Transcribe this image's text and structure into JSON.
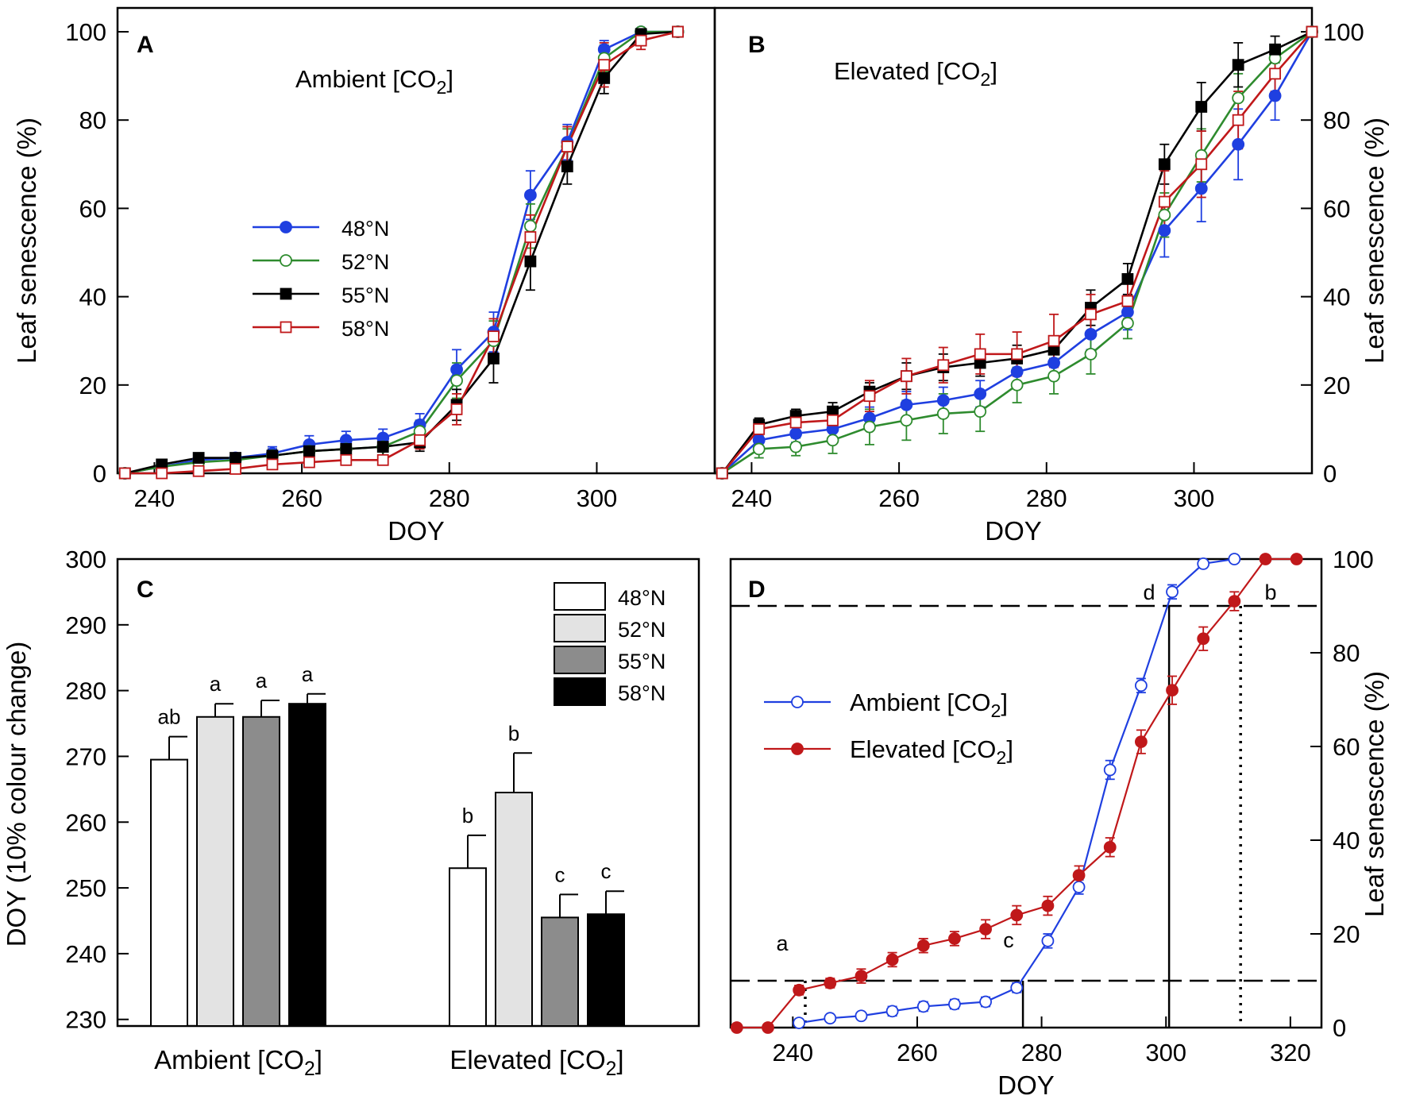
{
  "chart_data": [
    {
      "panel": "A",
      "type": "line",
      "title": "Ambient [CO",
      "title_sub": "2",
      "title_end": "]",
      "xlabel": "DOY",
      "ylabel": "Leaf senescence (%)",
      "xlim": [
        235,
        316
      ],
      "ylim": [
        0,
        100
      ],
      "xticks": [
        240,
        260,
        280,
        300
      ],
      "yticks": [
        0,
        20,
        40,
        60,
        80,
        100
      ],
      "x": [
        236,
        241,
        246,
        251,
        256,
        261,
        266,
        271,
        276,
        281,
        286,
        291,
        296,
        301,
        306,
        311
      ],
      "series": [
        {
          "name": "48°N",
          "color": "#1f3fe0",
          "marker": "filled-circle",
          "values": [
            0,
            1.5,
            3,
            3.5,
            4.5,
            6.5,
            7.5,
            8,
            11,
            23.5,
            32,
            63,
            75,
            96,
            100,
            100
          ],
          "errors": [
            0,
            0.5,
            1,
            1,
            1.5,
            2,
            2,
            2,
            2.5,
            4.5,
            4.5,
            5.5,
            4,
            2,
            0,
            0
          ]
        },
        {
          "name": "52°N",
          "color": "#2e8b2e",
          "marker": "open-circle",
          "values": [
            0,
            1.5,
            2.5,
            3,
            4,
            5,
            5.5,
            6,
            9.5,
            21,
            30,
            56,
            74,
            94,
            100,
            100
          ],
          "errors": [
            0,
            0.5,
            1,
            1,
            1.5,
            1.5,
            1.5,
            2,
            2.5,
            4,
            4.5,
            5,
            4,
            3,
            0,
            0
          ]
        },
        {
          "name": "55°N",
          "color": "#000000",
          "marker": "filled-square",
          "values": [
            0,
            2,
            3.5,
            3.5,
            4,
            5,
            5.5,
            6,
            7,
            15.5,
            26,
            48,
            69.5,
            89.5,
            99.5,
            100
          ],
          "errors": [
            0,
            0.5,
            1,
            1,
            1.5,
            1.5,
            1.5,
            2,
            2,
            3.5,
            5.5,
            6.5,
            4,
            3.5,
            1,
            0
          ]
        },
        {
          "name": "58°N",
          "color": "#c0181a",
          "marker": "open-square",
          "values": [
            0,
            0,
            0.5,
            1,
            2,
            2.5,
            3,
            3,
            7.5,
            14.5,
            31,
            53.5,
            74,
            92.5,
            98,
            100
          ],
          "errors": [
            0,
            0.5,
            0.5,
            0.5,
            1,
            1,
            1,
            1,
            2,
            3.5,
            4,
            5,
            4.5,
            5,
            2,
            0
          ]
        }
      ]
    },
    {
      "panel": "B",
      "type": "line",
      "title": "Elevated [CO",
      "title_sub": "2",
      "title_end": "]",
      "xlabel": "DOY",
      "ylabel": "Leaf senescence (%)",
      "xlim": [
        235,
        316
      ],
      "ylim": [
        0,
        100
      ],
      "xticks": [
        240,
        260,
        280,
        300
      ],
      "yticks": [
        0,
        20,
        40,
        60,
        80,
        100
      ],
      "x": [
        236,
        241,
        246,
        251,
        256,
        261,
        266,
        271,
        276,
        281,
        286,
        291,
        296,
        301,
        306,
        311,
        316
      ],
      "series": [
        {
          "name": "48°N",
          "color": "#1f3fe0",
          "marker": "filled-circle",
          "values": [
            0,
            7.5,
            9,
            10,
            12.5,
            15.5,
            16.5,
            18,
            23,
            25,
            31.5,
            36.5,
            55,
            64.5,
            74.5,
            85.5,
            100
          ],
          "errors": [
            0,
            2,
            2,
            2,
            2.5,
            3,
            3,
            3,
            3,
            3.5,
            3.5,
            4,
            6,
            7.5,
            8,
            5.5,
            0
          ]
        },
        {
          "name": "52°N",
          "color": "#2e8b2e",
          "marker": "open-circle",
          "values": [
            0,
            5.5,
            6,
            7.5,
            10.5,
            12,
            13.5,
            14,
            20,
            22,
            27,
            34,
            58.5,
            72,
            85,
            94,
            100
          ],
          "errors": [
            0,
            2,
            2,
            3,
            4,
            4.5,
            4.5,
            4.5,
            4,
            4,
            4.5,
            3.5,
            5,
            6,
            5.5,
            3,
            0
          ]
        },
        {
          "name": "55°N",
          "color": "#000000",
          "marker": "filled-square",
          "values": [
            0,
            11,
            13,
            14,
            18.5,
            22,
            24,
            25,
            26,
            28,
            37.5,
            44,
            70,
            83,
            92.5,
            96,
            100
          ],
          "errors": [
            0,
            1.5,
            1.5,
            2,
            2,
            3,
            3,
            3,
            3,
            3,
            4,
            3.5,
            4.5,
            5.5,
            5,
            3,
            0
          ]
        },
        {
          "name": "58°N",
          "color": "#c0181a",
          "marker": "open-square",
          "values": [
            0,
            10,
            11.5,
            12,
            17.5,
            22,
            24.5,
            27,
            27,
            30,
            36,
            39,
            61.5,
            70,
            80,
            90.5,
            100
          ],
          "errors": [
            0,
            1.5,
            2,
            2.5,
            3.5,
            4,
            4,
            4.5,
            5,
            6,
            4.5,
            4,
            7,
            7.5,
            6.5,
            4,
            0
          ]
        }
      ]
    },
    {
      "panel": "C",
      "type": "bar",
      "ylabel": "DOY (10% colour change)",
      "ylim": [
        229,
        300
      ],
      "yticks": [
        230,
        240,
        250,
        260,
        270,
        280,
        290,
        300
      ],
      "groups": [
        {
          "label": "Ambient [CO",
          "label_sub": "2",
          "label_end": "]"
        },
        {
          "label": "Elevated [CO",
          "label_sub": "2",
          "label_end": "]"
        }
      ],
      "series": [
        {
          "name": "48°N",
          "fill": "#ffffff",
          "values": [
            269.5,
            253
          ],
          "errors": [
            3.5,
            5
          ],
          "letters": [
            "ab",
            "b"
          ]
        },
        {
          "name": "52°N",
          "fill": "#e3e3e3",
          "values": [
            276,
            264.5
          ],
          "errors": [
            2,
            6
          ],
          "letters": [
            "a",
            "b"
          ]
        },
        {
          "name": "55°N",
          "fill": "#8c8c8c",
          "values": [
            276,
            245.5
          ],
          "errors": [
            2.5,
            3.5
          ],
          "letters": [
            "a",
            "c"
          ]
        },
        {
          "name": "58°N",
          "fill": "#000000",
          "values": [
            278,
            246
          ],
          "errors": [
            1.5,
            3.5
          ],
          "letters": [
            "a",
            "c"
          ]
        }
      ]
    },
    {
      "panel": "D",
      "type": "line",
      "xlabel": "DOY",
      "ylabel": "Leaf senescence (%)",
      "xlim": [
        230,
        325
      ],
      "ylim": [
        0,
        100
      ],
      "xticks": [
        240,
        260,
        280,
        300,
        320
      ],
      "yticks": [
        0,
        20,
        40,
        60,
        80,
        100
      ],
      "series": [
        {
          "name": "Ambient [CO",
          "name_sub": "2",
          "name_end": "]",
          "color": "#1f3fe0",
          "marker": "open-circle",
          "x": [
            241,
            246,
            251,
            256,
            261,
            266,
            271,
            276,
            281,
            286,
            291,
            296,
            301,
            306,
            311
          ],
          "values": [
            1,
            2,
            2.5,
            3.5,
            4.5,
            5,
            5.5,
            8.5,
            18.5,
            30,
            55,
            73,
            93,
            99,
            100
          ],
          "errors": [
            0.5,
            0.5,
            0.5,
            1,
            1,
            1,
            1,
            1,
            1.5,
            1.5,
            2,
            1.5,
            1.5,
            0.5,
            0
          ]
        },
        {
          "name": "Elevated [CO",
          "name_sub": "2",
          "name_end": "]",
          "color": "#c0181a",
          "marker": "filled-circle",
          "x": [
            231,
            236,
            241,
            246,
            251,
            256,
            261,
            266,
            271,
            276,
            281,
            286,
            291,
            296,
            301,
            306,
            311,
            316,
            321
          ],
          "values": [
            0,
            0,
            8,
            9.5,
            11,
            14.5,
            17.5,
            19,
            21,
            24,
            26,
            32.5,
            38.5,
            61,
            72,
            83,
            91,
            100,
            100
          ],
          "errors": [
            0,
            0,
            1,
            1,
            1.5,
            1.5,
            1.5,
            1.5,
            2,
            2,
            2,
            2,
            2,
            2.5,
            3,
            2.5,
            2,
            0,
            0
          ]
        }
      ],
      "threshold_lines": [
        10,
        90
      ],
      "vertical_markers": [
        {
          "letter": "a",
          "doy": 242,
          "reaches": 10,
          "style": "dotted"
        },
        {
          "letter": "c",
          "doy": 277,
          "reaches": 10,
          "style": "solid"
        },
        {
          "letter": "d",
          "doy": 300.5,
          "reaches": 90,
          "style": "solid"
        },
        {
          "letter": "b",
          "doy": 312,
          "reaches": 90,
          "style": "dotted"
        }
      ]
    }
  ]
}
